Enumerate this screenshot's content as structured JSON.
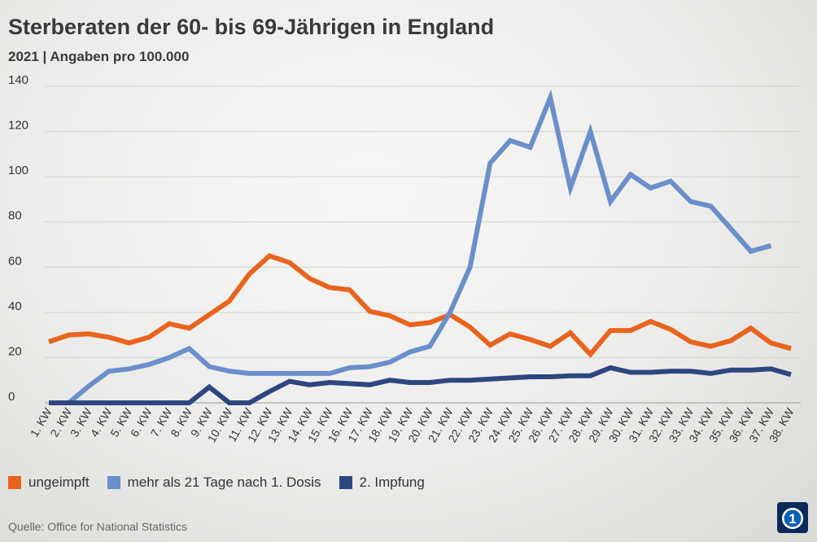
{
  "header": {
    "title": "Sterberaten der 60- bis 69-Jährigen in England",
    "subtitle": "2021 | Angaben pro 100.000"
  },
  "source": "Quelle: Office for National Statistics",
  "logo": {
    "icon": "ard-logo-icon"
  },
  "chart_data": {
    "type": "line",
    "title": "Sterberaten der 60- bis 69-Jährigen in England",
    "subtitle": "2021 | Angaben pro 100.000",
    "xlabel": "",
    "ylabel": "",
    "ylim": [
      0,
      140
    ],
    "yticks": [
      0,
      20,
      40,
      60,
      80,
      100,
      120,
      140
    ],
    "grid": true,
    "legend_position": "bottom-left",
    "categories": [
      "1. KW",
      "2. KW",
      "3. KW",
      "4. KW",
      "5. KW",
      "6. KW",
      "7. KW",
      "8. KW",
      "9. KW",
      "10. KW",
      "11. KW",
      "12. KW",
      "13. KW",
      "14. KW",
      "15. KW",
      "16. KW",
      "17. KW",
      "18. KW",
      "19. KW",
      "20. KW",
      "21. KW",
      "22. KW",
      "23. KW",
      "24. KW",
      "25. KW",
      "26. KW",
      "27. KW",
      "28. KW",
      "29. KW",
      "30. KW",
      "31. KW",
      "32. KW",
      "33. KW",
      "34. KW",
      "35. KW",
      "36. KW",
      "37. KW",
      "38. KW"
    ],
    "series": [
      {
        "name": "ungeimpft",
        "color": "#e8641e",
        "values": [
          27,
          30,
          30.5,
          29,
          26.5,
          29,
          35,
          33,
          39,
          45,
          57,
          65,
          62,
          55,
          51,
          50,
          40.5,
          38.5,
          34.5,
          35.5,
          39,
          33.5,
          25.5,
          30.5,
          28,
          25,
          31,
          21.5,
          32,
          32,
          36,
          32.5,
          27,
          25,
          27.5,
          33,
          26.5,
          24
        ]
      },
      {
        "name": "mehr als 21 Tage nach 1. Dosis",
        "color": "#6a8fca",
        "values": [
          0,
          0,
          7.5,
          14,
          15,
          17,
          20,
          24,
          16,
          14,
          13,
          13,
          13,
          13,
          13,
          15.5,
          16,
          18,
          22.5,
          25,
          40,
          60,
          106,
          116,
          113,
          135,
          95,
          120,
          89,
          101,
          95,
          98,
          89,
          87,
          77,
          67,
          69.5,
          null
        ]
      },
      {
        "name": "2. Impfung",
        "color": "#2e4680",
        "values": [
          0,
          0,
          0,
          0,
          0,
          0,
          0,
          0,
          7,
          0,
          0,
          5,
          9.5,
          8,
          9,
          8.5,
          8,
          10,
          9,
          9,
          10,
          10,
          10.5,
          11,
          11.5,
          11.5,
          12,
          12,
          15.5,
          13.5,
          13.5,
          14,
          14,
          13,
          14.5,
          14.5,
          15,
          12.5
        ]
      }
    ]
  }
}
